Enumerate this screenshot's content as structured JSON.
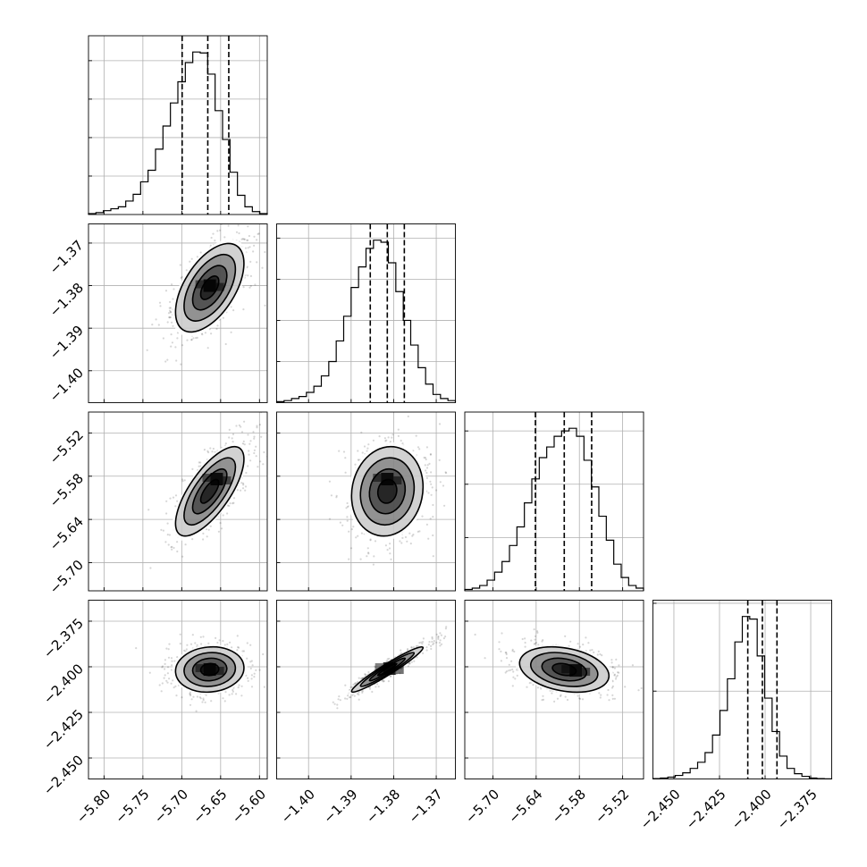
{
  "chart_data": {
    "type": "corner",
    "grid": true,
    "parameters": [
      {
        "range": [
          -5.82,
          -5.59
        ],
        "ticks": [
          -5.8,
          -5.75,
          -5.7,
          -5.65,
          -5.6
        ],
        "tick_labels": [
          "−5.80",
          "−5.75",
          "−5.70",
          "−5.65",
          "−5.60"
        ],
        "quantiles": [
          -5.6995,
          -5.6665,
          -5.6395
        ],
        "hist_values": [
          0.5,
          1.0,
          2.0,
          3.0,
          4.0,
          7.0,
          10.5,
          17.0,
          23.0,
          34.0,
          46.0,
          58.0,
          69.0,
          79.0,
          84.5,
          84.0,
          73.0,
          54.0,
          39.0,
          22.0,
          10.0,
          4.0,
          1.5,
          0.5
        ]
      },
      {
        "range": [
          -1.4075,
          -1.3655
        ],
        "ticks": [
          -1.4,
          -1.39,
          -1.38,
          -1.37
        ],
        "tick_labels": [
          "−1.40",
          "−1.39",
          "−1.38",
          "−1.37"
        ],
        "quantiles": [
          -1.3855,
          -1.3815,
          -1.3775
        ],
        "hist_values": [
          0.5,
          1.0,
          2.0,
          3.0,
          5.0,
          8.0,
          13.0,
          20.0,
          30.0,
          42.0,
          56.0,
          66.0,
          75.0,
          79.0,
          78.0,
          68.0,
          54.0,
          40.0,
          28.0,
          17.0,
          9.0,
          4.0,
          2.0,
          1.0
        ]
      },
      {
        "range": [
          -5.739,
          -5.491
        ],
        "ticks": [
          -5.7,
          -5.64,
          -5.58,
          -5.52
        ],
        "tick_labels": [
          "−5.70",
          "−5.64",
          "−5.58",
          "−5.52"
        ],
        "quantiles": [
          -5.641,
          -5.601,
          -5.563
        ],
        "hist_values": [
          0.5,
          1.0,
          2.0,
          4.0,
          7.0,
          11.0,
          17.0,
          24.0,
          33.0,
          42.0,
          50.0,
          54.0,
          58.0,
          60.0,
          61.0,
          58.0,
          49.0,
          39.0,
          28.0,
          19.0,
          10.0,
          5.0,
          2.0,
          1.0
        ]
      },
      {
        "range": [
          -2.4615,
          -2.3635
        ],
        "ticks": [
          -2.45,
          -2.425,
          -2.4,
          -2.375
        ],
        "tick_labels": [
          "−2.450",
          "−2.425",
          "−2.400",
          "−2.375"
        ],
        "quantiles": [
          -2.4095,
          -2.4015,
          -2.3935
        ],
        "hist_values": [
          0.2,
          0.5,
          1.0,
          2.0,
          3.5,
          6.0,
          9.5,
          15.0,
          25.0,
          39.0,
          57.0,
          78.0,
          92.5,
          91.0,
          70.0,
          46.0,
          27.0,
          13.0,
          6.0,
          3.0,
          1.5,
          0.5,
          0.2,
          0.1
        ]
      }
    ],
    "pairs": [
      {
        "x": 0,
        "y": 1,
        "center": [
          -5.664,
          -1.3805
        ],
        "sd": [
          0.022,
          0.0052
        ],
        "corr": 0.55,
        "peak": [
          -5.664,
          -1.38
        ]
      },
      {
        "x": 0,
        "y": 2,
        "center": [
          -5.664,
          -5.601
        ],
        "sd": [
          0.022,
          0.031
        ],
        "corr": 0.72,
        "peak": [
          -5.655,
          -5.584
        ]
      },
      {
        "x": 1,
        "y": 2,
        "center": [
          -1.3815,
          -5.601
        ],
        "sd": [
          0.0042,
          0.031
        ],
        "corr": 0.1,
        "peak": [
          -1.3815,
          -5.584
        ]
      },
      {
        "x": 0,
        "y": 3,
        "center": [
          -5.664,
          -2.4015
        ],
        "sd": [
          0.022,
          0.0062
        ],
        "corr": 0.08,
        "peak": [
          -5.664,
          -2.4015
        ]
      },
      {
        "x": 1,
        "y": 3,
        "center": [
          -1.3815,
          -2.4015
        ],
        "sd": [
          0.0042,
          0.0062
        ],
        "corr": 0.96,
        "peak": [
          -1.381,
          -2.401
        ]
      },
      {
        "x": 2,
        "y": 3,
        "center": [
          -5.601,
          -2.4015
        ],
        "sd": [
          0.031,
          0.0062
        ],
        "corr": -0.28,
        "peak": [
          -5.585,
          -2.402
        ]
      }
    ]
  }
}
